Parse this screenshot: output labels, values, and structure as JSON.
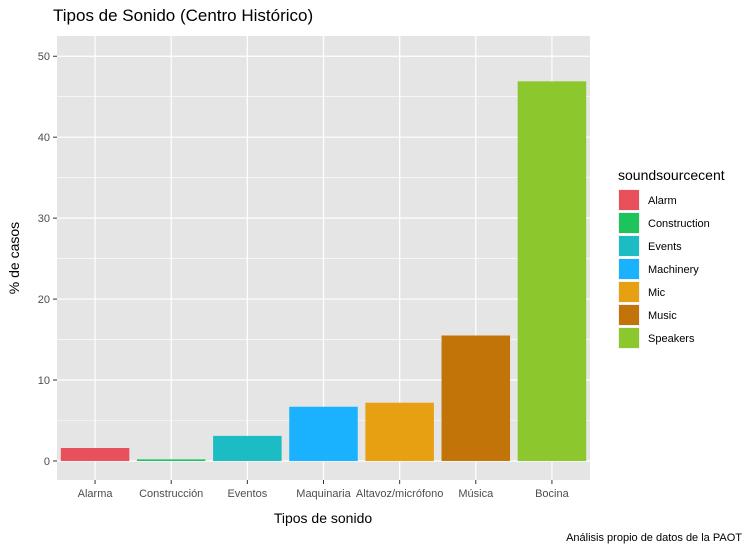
{
  "chart_data": {
    "type": "bar",
    "title": "Tipos de Sonido (Centro Histórico)",
    "xlabel": "Tipos de sonido",
    "ylabel": "% de casos",
    "caption": "Análisis propio de datos de la PAOT",
    "categories": [
      "Alarma",
      "Construcción",
      "Eventos",
      "Maquinaria",
      "Altavoz/micrófono",
      "Música",
      "Bocina"
    ],
    "values": [
      1.6,
      0.2,
      3.1,
      6.7,
      7.2,
      15.5,
      46.9
    ],
    "fill_keys": [
      "Alarm",
      "Construction",
      "Events",
      "Machinery",
      "Mic",
      "Music",
      "Speakers"
    ],
    "ylim": [
      -2.35,
      52.5
    ],
    "yticks": [
      0,
      10,
      20,
      30,
      40,
      50
    ],
    "ytick_labels": [
      "0",
      "10",
      "20",
      "30",
      "40",
      "50"
    ],
    "grid": true,
    "legend": {
      "title": "soundsourcecent",
      "position": "right",
      "entries": [
        {
          "label": "Alarm",
          "color": "#E8505B"
        },
        {
          "label": "Construction",
          "color": "#1DC45B"
        },
        {
          "label": "Events",
          "color": "#1CBCC4"
        },
        {
          "label": "Machinery",
          "color": "#1AB2FF"
        },
        {
          "label": "Mic",
          "color": "#E8A013"
        },
        {
          "label": "Music",
          "color": "#C27408"
        },
        {
          "label": "Speakers",
          "color": "#8BC72D"
        }
      ]
    },
    "panel_background": "#E5E5E5",
    "grid_color": "#FFFFFF"
  }
}
